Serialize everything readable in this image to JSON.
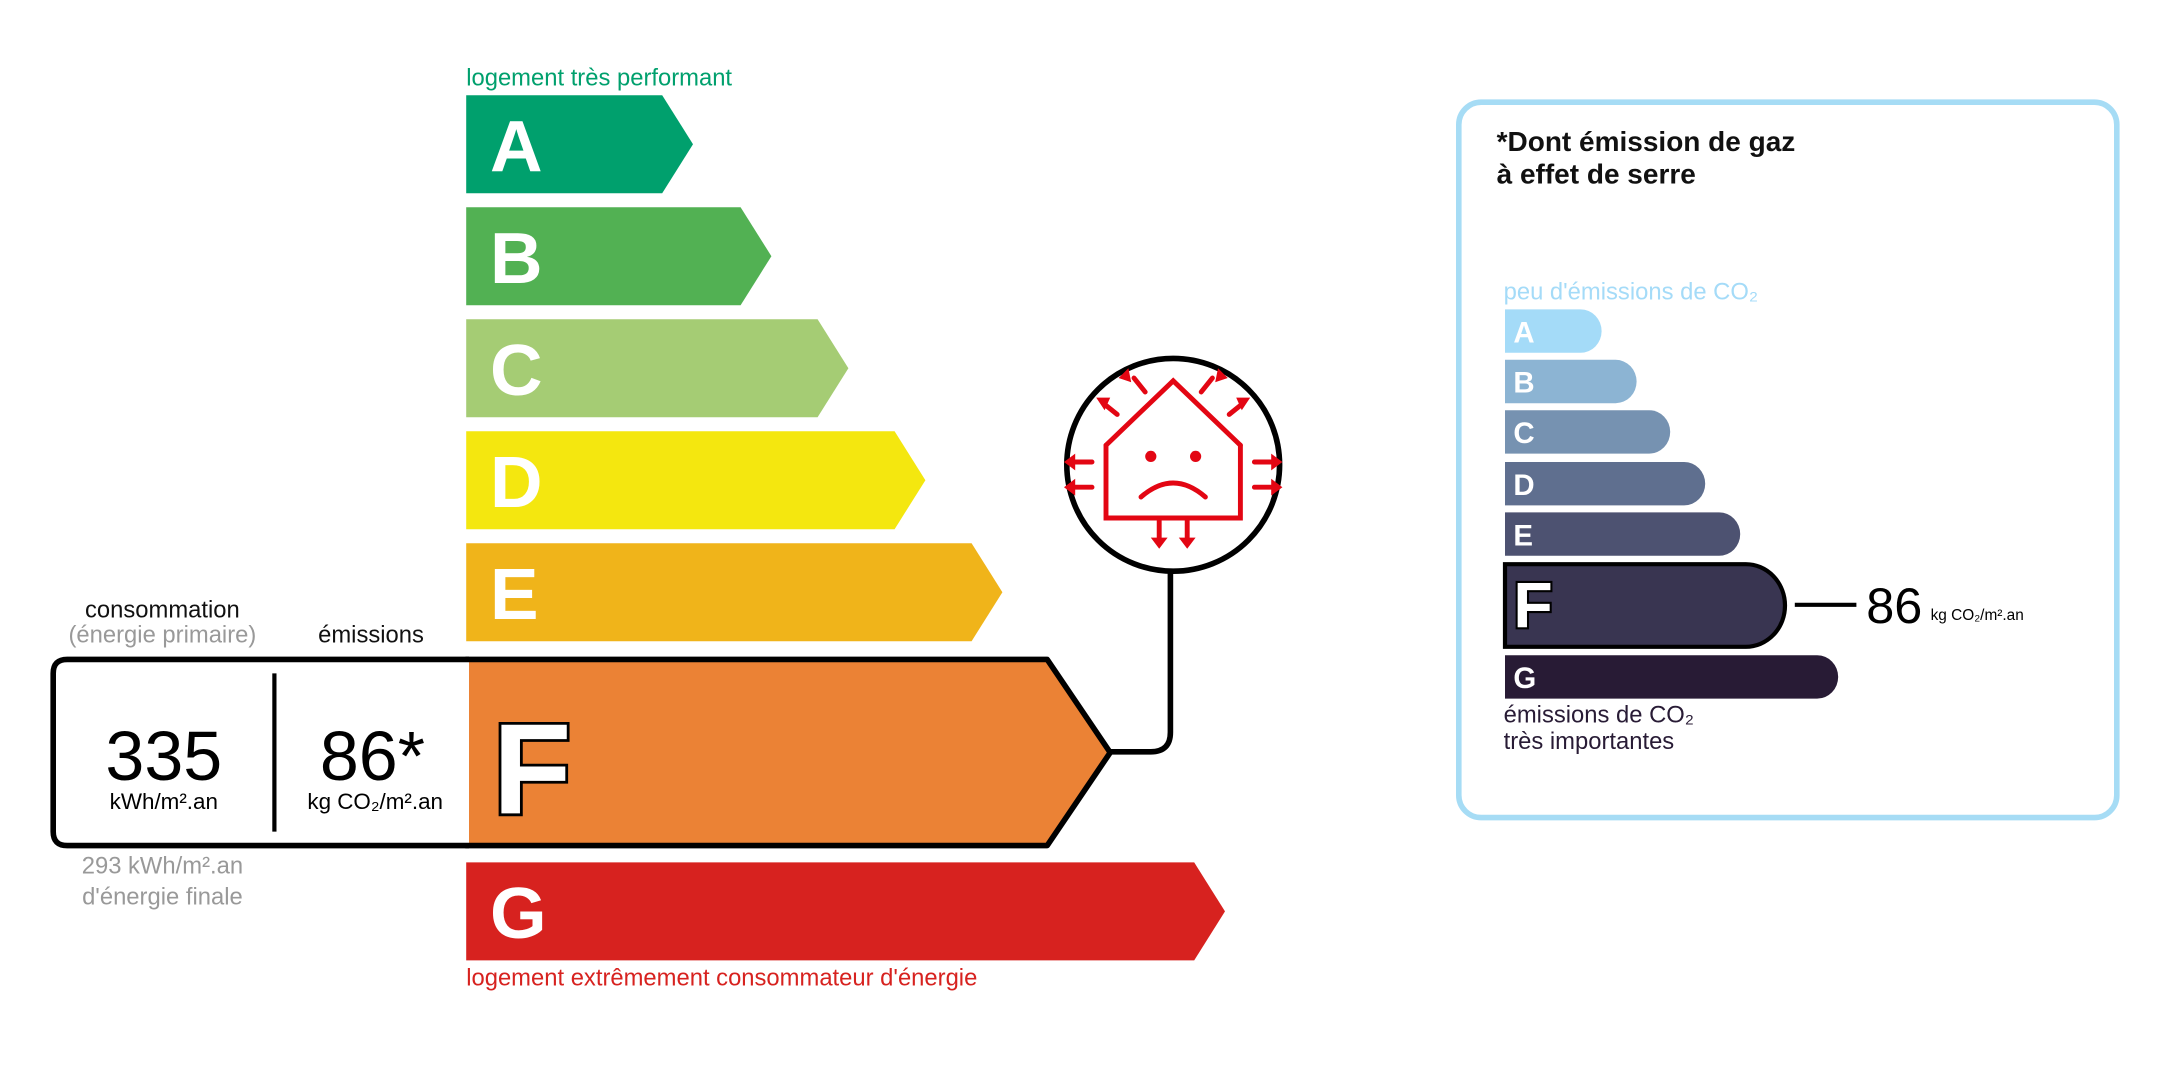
{
  "energy": {
    "top_label": "logement très performant",
    "bottom_label": "logement extrêmement consommateur d'énergie",
    "classes": [
      {
        "letter": "A",
        "color": "#00a06d"
      },
      {
        "letter": "B",
        "color": "#52b153"
      },
      {
        "letter": "C",
        "color": "#a5cc74"
      },
      {
        "letter": "D",
        "color": "#f4e70f"
      },
      {
        "letter": "E",
        "color": "#f0b41a"
      },
      {
        "letter": "F",
        "color": "#eb8235"
      },
      {
        "letter": "G",
        "color": "#d7221f"
      }
    ],
    "current_class": "F",
    "consumption_header": "consommation",
    "consumption_subheader": "(énergie primaire)",
    "emissions_header": "émissions",
    "consumption_value": "335",
    "consumption_unit": "kWh/m².an",
    "emissions_value": "86*",
    "emissions_unit": "kg CO₂/m².an",
    "final_energy_line1": "293 kWh/m².an",
    "final_energy_line2": "d'énergie finale",
    "icon": "sad-house-heat-loss-icon",
    "icon_color": "#e30613"
  },
  "ges": {
    "title_line1": "*Dont émission de gaz",
    "title_line2": "à effet de serre",
    "top_label": "peu d'émissions de CO₂",
    "bottom_label_line1": "émissions de CO₂",
    "bottom_label_line2": "très importantes",
    "classes": [
      {
        "letter": "A",
        "color": "#a4dbf8"
      },
      {
        "letter": "B",
        "color": "#8cb4d3"
      },
      {
        "letter": "C",
        "color": "#7692b1"
      },
      {
        "letter": "D",
        "color": "#5f6f8f"
      },
      {
        "letter": "E",
        "color": "#4d5271"
      },
      {
        "letter": "F",
        "color": "#393551"
      },
      {
        "letter": "G",
        "color": "#281b35"
      }
    ],
    "current_class": "F",
    "value": "86",
    "unit": "kg CO₂/m².an",
    "border_color": "#a6dcf5"
  }
}
